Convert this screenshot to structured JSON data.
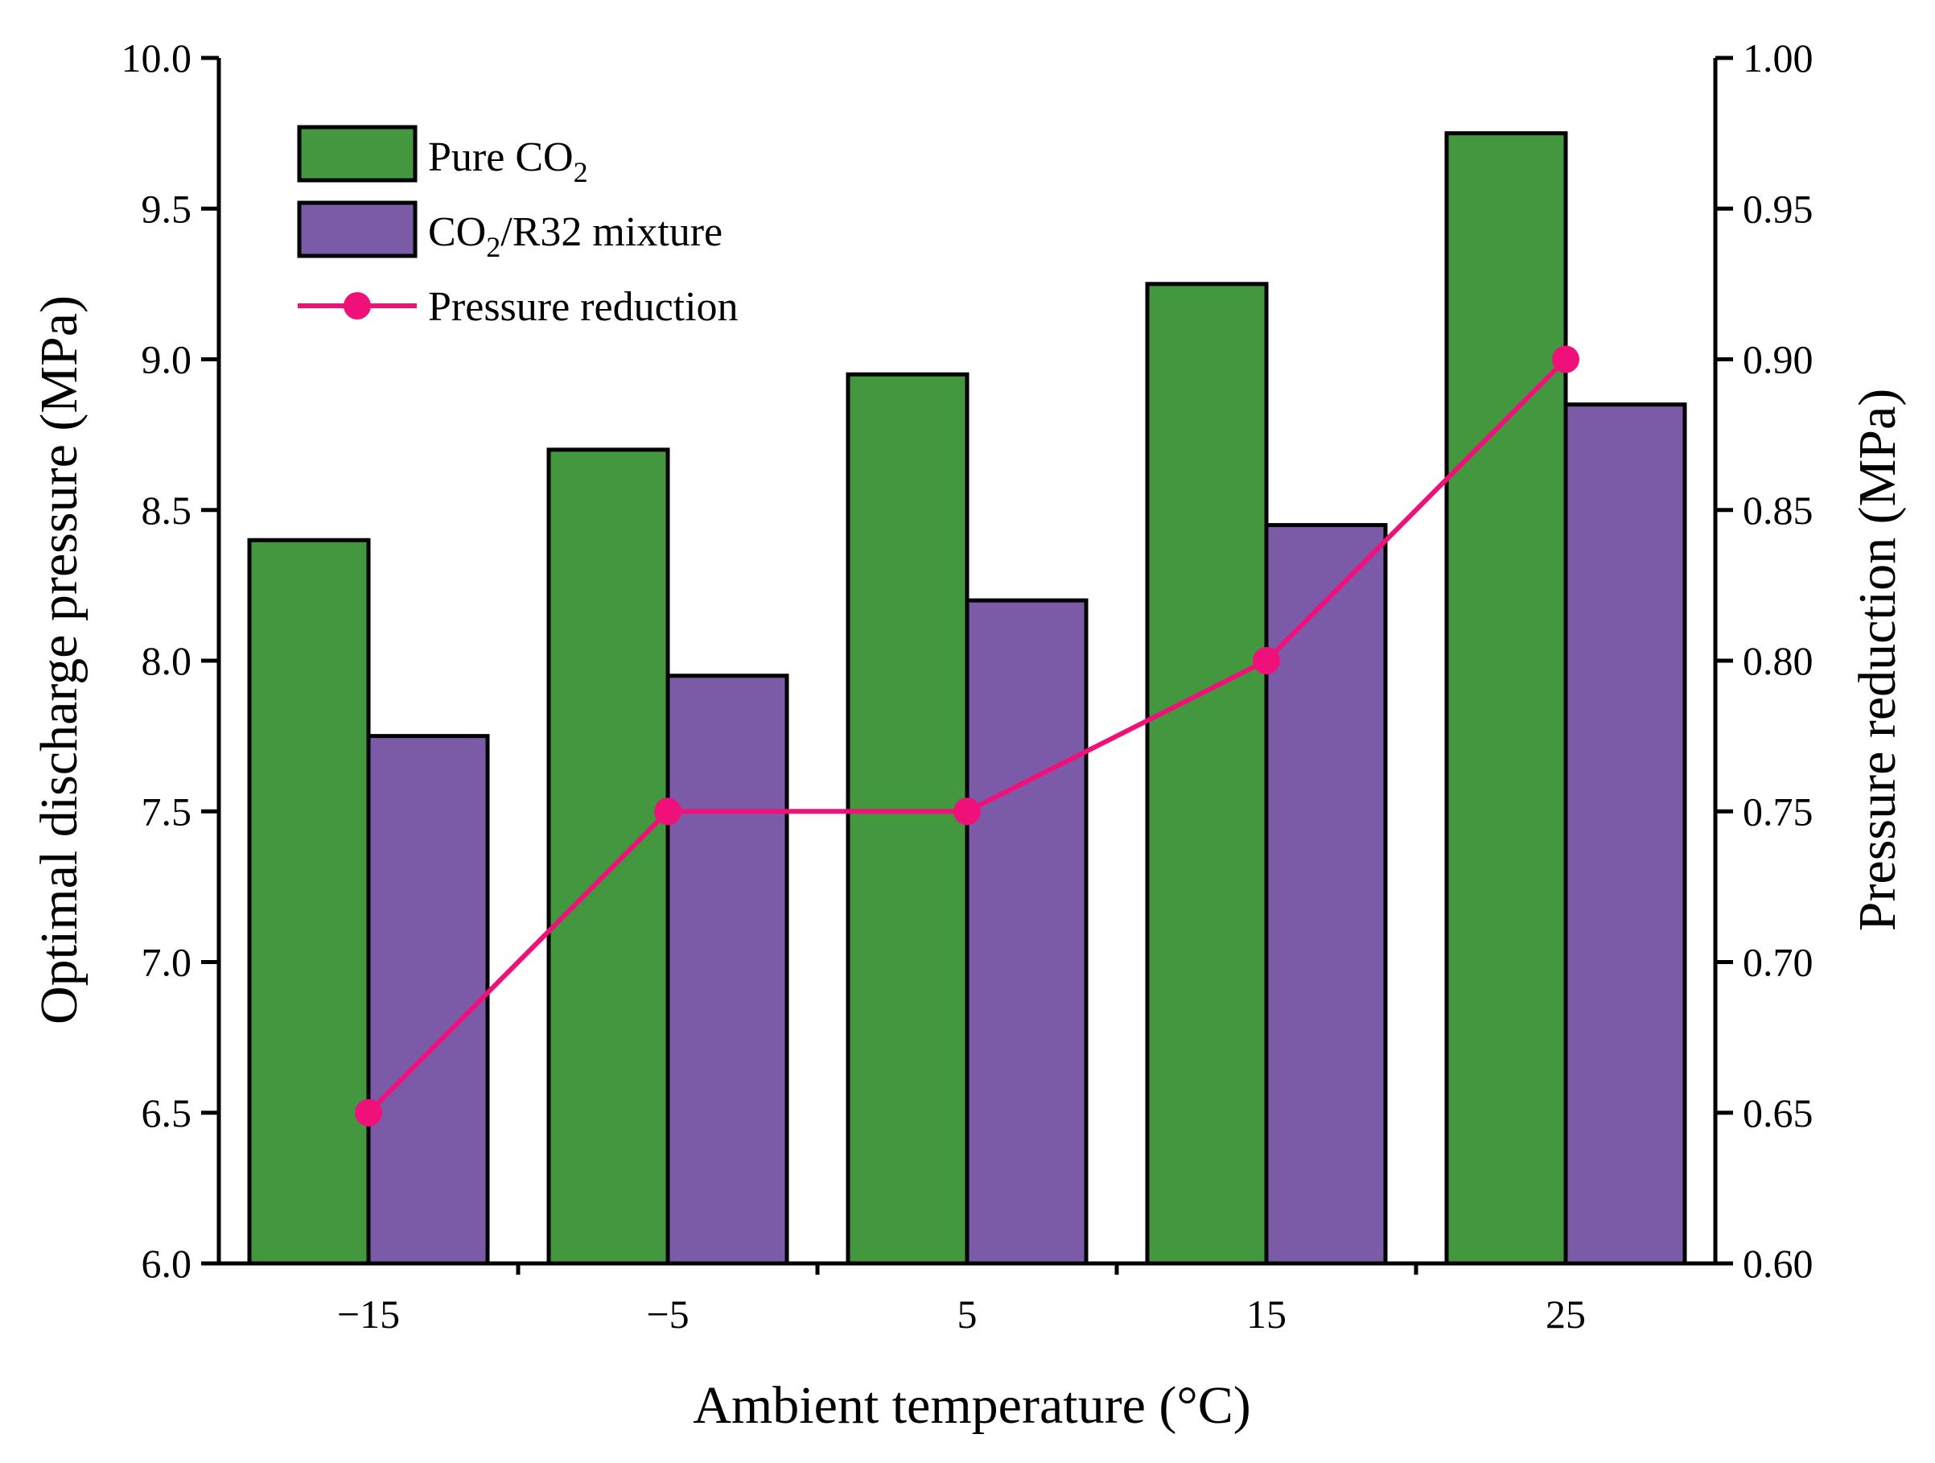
{
  "chart_data": {
    "type": "bar+line",
    "title": "",
    "categories": [
      "−15",
      "−5",
      "5",
      "15",
      "25"
    ],
    "xlabel": "Ambient temperature (°C)",
    "ylabel_left": "Optimal discharge pressure (MPa)",
    "ylabel_right": "Pressure reduction (MPa)",
    "ylim_left": [
      6.0,
      10.0
    ],
    "ylim_right": [
      0.6,
      1.0
    ],
    "yticks_left": [
      "6.0",
      "6.5",
      "7.0",
      "7.5",
      "8.0",
      "8.5",
      "9.0",
      "9.5",
      "10.0"
    ],
    "yticks_right": [
      "0.60",
      "0.65",
      "0.70",
      "0.75",
      "0.80",
      "0.85",
      "0.90",
      "0.95",
      "1.00"
    ],
    "bar_series": [
      {
        "name": "Pure CO2",
        "label_main": "Pure CO",
        "label_sub": "2",
        "label_after": "",
        "color": "#43983F",
        "values": [
          8.4,
          8.7,
          8.95,
          9.25,
          9.75
        ]
      },
      {
        "name": "CO2/R32 mixture",
        "label_main": "CO",
        "label_sub": "2",
        "label_after": "/R32 mixture",
        "color": "#7B5BA7",
        "values": [
          7.75,
          7.95,
          8.2,
          8.45,
          8.85
        ]
      }
    ],
    "line_series": {
      "name": "Pressure reduction",
      "color": "#F0107A",
      "axis": "right",
      "values": [
        0.65,
        0.75,
        0.75,
        0.8,
        0.9
      ]
    },
    "legend_position": "top-left",
    "grid": false
  }
}
